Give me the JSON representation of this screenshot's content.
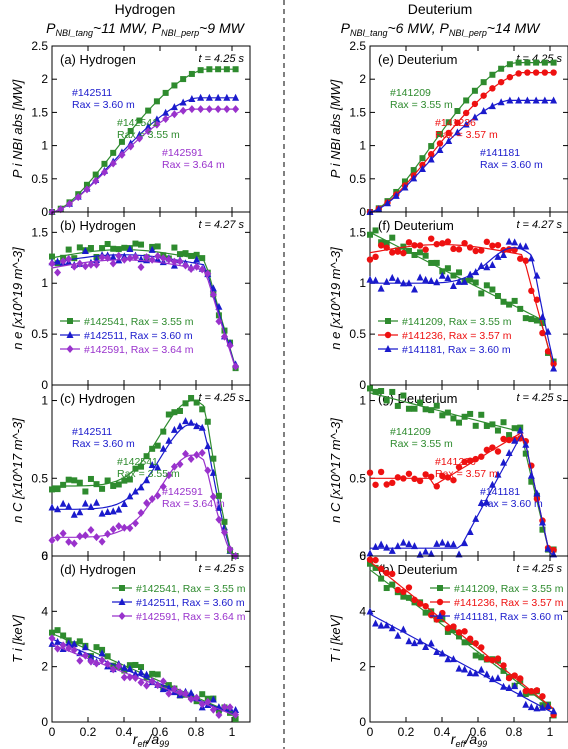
{
  "colors": {
    "green": "#2e8b2e",
    "blue": "#1a1acc",
    "purple": "#9932cc",
    "red": "#ee1111"
  },
  "columns": {
    "left": {
      "title": "Hydrogen",
      "subtitle_html": "P<tspan font-size='9' dy='3'>NBI_tang</tspan><tspan dy='-3'>~11 MW, P</tspan><tspan font-size='9' dy='3'>NBI_perp</tspan><tspan dy='-3'>~9 MW</tspan>"
    },
    "right": {
      "title": "Deuterium",
      "subtitle_html": "P<tspan font-size='9' dy='3'>NBI_tang</tspan><tspan dy='-3'>~6 MW, P</tspan><tspan font-size='9' dy='3'>NBI_perp</tspan><tspan dy='-3'>~14 MW</tspan>"
    }
  },
  "xlabel": "r_eff/a_99",
  "chart_data": [
    {
      "id": "a",
      "type": "line",
      "label": "(a) Hydrogen",
      "time": "t = 4.25 s",
      "ylabel": "P_i_NBI_abs [MW]",
      "xlim": [
        0,
        1.1
      ],
      "ylim": [
        0,
        2.5
      ],
      "yticks": [
        0,
        0.5,
        1,
        1.5,
        2,
        2.5
      ],
      "series": [
        {
          "name": "#142511, Rax = 3.60 m",
          "color": "blue",
          "marker": "tri",
          "end": 1.72
        },
        {
          "name": "#142541, Rax = 3.55 m",
          "color": "green",
          "marker": "sq",
          "end": 2.15
        },
        {
          "name": "#142591, Rax = 3.64 m",
          "color": "purple",
          "marker": "dia",
          "end": 1.55
        }
      ]
    },
    {
      "id": "b",
      "type": "scatter",
      "label": "(b) Hydrogen",
      "time": "t = 4.27 s",
      "ylabel": "n_e [x10^19 m^-3]",
      "xlim": [
        0,
        1.1
      ],
      "ylim": [
        0,
        1.7
      ],
      "yticks": [
        0,
        0.5,
        1,
        1.5
      ],
      "series": [
        {
          "name": "#142541, Rax = 3.55 m",
          "color": "green",
          "marker": "sq",
          "level": 1.25
        },
        {
          "name": "#142511, Rax = 3.60 m",
          "color": "blue",
          "marker": "tri",
          "level": 1.2
        },
        {
          "name": "#142591, Rax = 3.64 m",
          "color": "purple",
          "marker": "dia",
          "level": 1.15
        }
      ]
    },
    {
      "id": "c",
      "type": "scatter",
      "label": "(c) Hydrogen",
      "time": "t = 4.25 s",
      "ylabel": "n_C [x10^17 m^-3]",
      "xlim": [
        0,
        1.1
      ],
      "ylim": [
        0,
        1.1
      ],
      "yticks": [
        0,
        0.5,
        1
      ],
      "series": [
        {
          "name": "#142511, Rax = 3.60 m",
          "color": "blue",
          "marker": "tri",
          "peak": 0.85
        },
        {
          "name": "#142541, Rax = 3.55 m",
          "color": "green",
          "marker": "sq",
          "peak": 1.0
        },
        {
          "name": "#142591, Rax = 3.64 m",
          "color": "purple",
          "marker": "dia",
          "peak": 0.65
        }
      ]
    },
    {
      "id": "d",
      "type": "scatter",
      "label": "(d) Hydrogen",
      "time": "t = 4.25 s",
      "ylabel": "T_i [keV]",
      "xlim": [
        0,
        1.1
      ],
      "ylim": [
        0,
        6
      ],
      "yticks": [
        0,
        2,
        4,
        6
      ],
      "series": [
        {
          "name": "#142541, Rax = 3.55 m",
          "color": "green",
          "marker": "sq",
          "center": 3.2
        },
        {
          "name": "#142511, Rax = 3.60 m",
          "color": "blue",
          "marker": "tri",
          "center": 3.0
        },
        {
          "name": "#142591, Rax = 3.64 m",
          "color": "purple",
          "marker": "dia",
          "center": 2.8
        }
      ]
    },
    {
      "id": "e",
      "type": "line",
      "label": "(e) Deuterium",
      "time": "t = 4.25 s",
      "ylabel": "P_i_NBI_abs [MW]",
      "xlim": [
        0,
        1.1
      ],
      "ylim": [
        0,
        2.5
      ],
      "yticks": [
        0,
        0.5,
        1,
        1.5,
        2,
        2.5
      ],
      "series": [
        {
          "name": "#141209, Rax = 3.55 m",
          "color": "green",
          "marker": "sq",
          "end": 2.25
        },
        {
          "name": "#141236, Rax = 3.57 m",
          "color": "red",
          "marker": "circ",
          "end": 2.1
        },
        {
          "name": "#141181, Rax = 3.60 m",
          "color": "blue",
          "marker": "tri",
          "end": 1.68
        }
      ]
    },
    {
      "id": "f",
      "type": "scatter",
      "label": "(f) Deuterium",
      "time": "t = 4.27 s",
      "ylabel": "n_e [x10^19 m^-3]",
      "xlim": [
        0,
        1.1
      ],
      "ylim": [
        0,
        1.7
      ],
      "yticks": [
        0,
        0.5,
        1,
        1.5
      ],
      "series": [
        {
          "name": "#141209, Rax = 3.55 m",
          "color": "green",
          "marker": "sq",
          "level": 1.5
        },
        {
          "name": "#141236, Rax = 3.57 m",
          "color": "red",
          "marker": "circ",
          "level": 1.3
        },
        {
          "name": "#141181, Rax = 3.60 m",
          "color": "blue",
          "marker": "tri",
          "level": 1.0
        }
      ]
    },
    {
      "id": "g",
      "type": "scatter",
      "label": "(g) Deuterium",
      "time": "t = 4.25 s",
      "ylabel": "n_C [x10^17 m^-3]",
      "xlim": [
        0,
        1.1
      ],
      "ylim": [
        0,
        1.1
      ],
      "yticks": [
        0,
        0.5,
        1
      ],
      "series": [
        {
          "name": "#141209, Rax = 3.55 m",
          "color": "green",
          "marker": "sq",
          "peak": 1.05
        },
        {
          "name": "#141236, Rax = 3.57 m",
          "color": "red",
          "marker": "circ",
          "peak": 0.8
        },
        {
          "name": "#141181, Rax = 3.60 m",
          "color": "blue",
          "marker": "tri",
          "peak": 0.8
        }
      ]
    },
    {
      "id": "h",
      "type": "scatter",
      "label": "(h) Deuterium",
      "time": "t = 4.25 s",
      "ylabel": "T_i [keV]",
      "xlim": [
        0,
        1.1
      ],
      "ylim": [
        0,
        6
      ],
      "yticks": [
        0,
        2,
        4,
        6
      ],
      "series": [
        {
          "name": "#141209, Rax = 3.55 m",
          "color": "green",
          "marker": "sq",
          "center": 5.5
        },
        {
          "name": "#141236, Rax = 3.57 m",
          "color": "red",
          "marker": "circ",
          "center": 5.8
        },
        {
          "name": "#141181, Rax = 3.60 m",
          "color": "blue",
          "marker": "tri",
          "center": 3.9
        }
      ]
    }
  ],
  "xticks": [
    0,
    0.2,
    0.4,
    0.6,
    0.8,
    1
  ]
}
